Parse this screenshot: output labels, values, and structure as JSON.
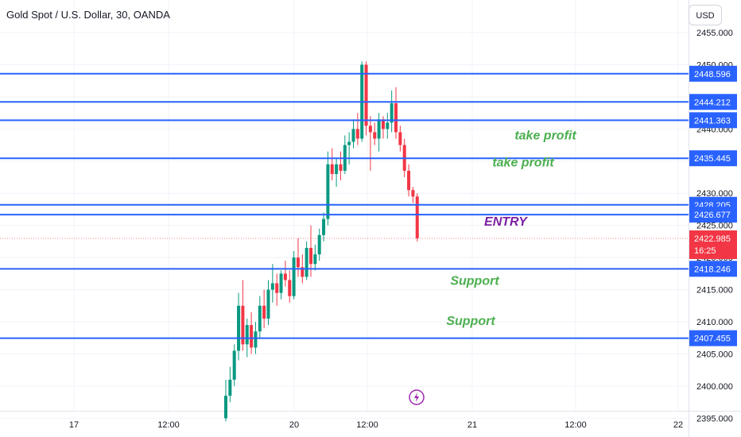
{
  "header": {
    "title": "Gold Spot / U.S. Dollar, 30, OANDA",
    "currency_button": "USD"
  },
  "chart_data": {
    "type": "candlestick",
    "symbol": "Gold Spot / U.S. Dollar",
    "interval": "30",
    "source": "OANDA",
    "currency": "USD",
    "ylim": [
      2394,
      2457
    ],
    "y_ticks": [
      2455,
      2450,
      2445,
      2440,
      2435,
      2430,
      2425,
      2420,
      2415,
      2410,
      2405,
      2400,
      2395
    ],
    "y_tick_labels": [
      "2455.000",
      "2450.000",
      "2445.000",
      "2440.000",
      "2435.000",
      "2430.000",
      "2425.000",
      "2420.000",
      "2415.000",
      "2410.000",
      "2405.000",
      "2400.000",
      "2395.000"
    ],
    "x_tick_labels": [
      "17",
      "12:00",
      "20",
      "12:00",
      "21",
      "12:00",
      "22"
    ],
    "candles": [
      {
        "o": 2395.0,
        "h": 2401.0,
        "l": 2394.5,
        "c": 2398.5
      },
      {
        "o": 2398.5,
        "h": 2403.0,
        "l": 2397.5,
        "c": 2401.0
      },
      {
        "o": 2401.0,
        "h": 2406.5,
        "l": 2400.0,
        "c": 2405.5
      },
      {
        "o": 2405.5,
        "h": 2414.5,
        "l": 2404.0,
        "c": 2412.5
      },
      {
        "o": 2412.5,
        "h": 2416.5,
        "l": 2405.5,
        "c": 2406.5
      },
      {
        "o": 2406.5,
        "h": 2410.5,
        "l": 2404.5,
        "c": 2409.5
      },
      {
        "o": 2409.5,
        "h": 2411.5,
        "l": 2405.0,
        "c": 2406.0
      },
      {
        "o": 2406.0,
        "h": 2410.0,
        "l": 2405.0,
        "c": 2408.5
      },
      {
        "o": 2408.5,
        "h": 2414.0,
        "l": 2407.5,
        "c": 2412.5
      },
      {
        "o": 2412.5,
        "h": 2415.0,
        "l": 2409.0,
        "c": 2410.5
      },
      {
        "o": 2410.5,
        "h": 2416.5,
        "l": 2409.5,
        "c": 2415.0
      },
      {
        "o": 2415.0,
        "h": 2419.0,
        "l": 2413.0,
        "c": 2416.0
      },
      {
        "o": 2416.0,
        "h": 2417.5,
        "l": 2412.5,
        "c": 2414.5
      },
      {
        "o": 2414.5,
        "h": 2418.0,
        "l": 2413.5,
        "c": 2417.5
      },
      {
        "o": 2417.5,
        "h": 2419.5,
        "l": 2415.5,
        "c": 2416.5
      },
      {
        "o": 2416.5,
        "h": 2418.0,
        "l": 2413.0,
        "c": 2414.0
      },
      {
        "o": 2414.0,
        "h": 2421.0,
        "l": 2413.5,
        "c": 2420.0
      },
      {
        "o": 2420.0,
        "h": 2423.0,
        "l": 2417.0,
        "c": 2418.5
      },
      {
        "o": 2418.5,
        "h": 2420.5,
        "l": 2416.0,
        "c": 2417.0
      },
      {
        "o": 2417.0,
        "h": 2422.5,
        "l": 2416.5,
        "c": 2421.5
      },
      {
        "o": 2421.5,
        "h": 2425.0,
        "l": 2417.0,
        "c": 2419.0
      },
      {
        "o": 2419.0,
        "h": 2422.0,
        "l": 2418.0,
        "c": 2420.5
      },
      {
        "o": 2420.5,
        "h": 2424.5,
        "l": 2419.5,
        "c": 2423.5
      },
      {
        "o": 2423.5,
        "h": 2427.0,
        "l": 2422.5,
        "c": 2426.0
      },
      {
        "o": 2426.0,
        "h": 2436.5,
        "l": 2425.0,
        "c": 2434.5
      },
      {
        "o": 2434.5,
        "h": 2437.0,
        "l": 2432.0,
        "c": 2433.0
      },
      {
        "o": 2433.0,
        "h": 2435.5,
        "l": 2431.0,
        "c": 2434.5
      },
      {
        "o": 2434.5,
        "h": 2436.5,
        "l": 2432.0,
        "c": 2433.5
      },
      {
        "o": 2433.5,
        "h": 2439.0,
        "l": 2433.0,
        "c": 2437.5
      },
      {
        "o": 2437.5,
        "h": 2439.5,
        "l": 2434.5,
        "c": 2438.0
      },
      {
        "o": 2438.0,
        "h": 2441.5,
        "l": 2437.0,
        "c": 2440.0
      },
      {
        "o": 2440.0,
        "h": 2442.5,
        "l": 2437.5,
        "c": 2438.5
      },
      {
        "o": 2438.5,
        "h": 2450.5,
        "l": 2438.0,
        "c": 2450.0
      },
      {
        "o": 2450.0,
        "h": 2450.5,
        "l": 2439.0,
        "c": 2440.5
      },
      {
        "o": 2440.5,
        "h": 2442.0,
        "l": 2433.5,
        "c": 2439.5
      },
      {
        "o": 2439.5,
        "h": 2441.0,
        "l": 2437.5,
        "c": 2438.5
      },
      {
        "o": 2438.5,
        "h": 2442.5,
        "l": 2436.5,
        "c": 2441.5
      },
      {
        "o": 2441.5,
        "h": 2442.0,
        "l": 2438.5,
        "c": 2440.0
      },
      {
        "o": 2440.0,
        "h": 2442.5,
        "l": 2438.5,
        "c": 2441.0
      },
      {
        "o": 2441.0,
        "h": 2446.0,
        "l": 2439.5,
        "c": 2444.0
      },
      {
        "o": 2444.0,
        "h": 2446.5,
        "l": 2438.5,
        "c": 2439.5
      },
      {
        "o": 2439.5,
        "h": 2440.5,
        "l": 2436.5,
        "c": 2437.5
      },
      {
        "o": 2437.5,
        "h": 2438.5,
        "l": 2432.5,
        "c": 2433.5
      },
      {
        "o": 2433.5,
        "h": 2434.5,
        "l": 2429.5,
        "c": 2430.5
      },
      {
        "o": 2430.5,
        "h": 2431.0,
        "l": 2428.5,
        "c": 2429.5
      },
      {
        "o": 2429.5,
        "h": 2430.0,
        "l": 2422.5,
        "c": 2423.0
      }
    ],
    "horizontal_lines": [
      {
        "price": 2448.596,
        "label": "2448.596"
      },
      {
        "price": 2444.212,
        "label": "2444.212"
      },
      {
        "price": 2441.363,
        "label": "2441.363"
      },
      {
        "price": 2435.445,
        "label": "2435.445"
      },
      {
        "price": 2428.205,
        "label": "2428.205"
      },
      {
        "price": 2426.677,
        "label": "2426.677"
      },
      {
        "price": 2418.246,
        "label": "2418.246"
      },
      {
        "price": 2407.455,
        "label": "2407.455"
      }
    ],
    "current_price": {
      "price": 2422.985,
      "label": "2422.985",
      "countdown": "16:25"
    },
    "annotations": [
      {
        "text": "take profit",
        "price": 2439.0,
        "color": "#4caf50"
      },
      {
        "text": "take profit",
        "price": 2434.8,
        "color": "#4caf50"
      },
      {
        "text": "ENTRY",
        "price": 2425.6,
        "color": "#7b1fa2"
      },
      {
        "text": "Support",
        "price": 2416.4,
        "color": "#4caf50"
      },
      {
        "text": "Support",
        "price": 2410.1,
        "color": "#4caf50"
      }
    ],
    "colors": {
      "up": "#089981",
      "down": "#f23645",
      "level_line": "#2962ff",
      "axis_text": "#131722",
      "grid": "#f0f3fa",
      "current_price": "#f23645"
    },
    "event_icon": "lightning-icon"
  }
}
